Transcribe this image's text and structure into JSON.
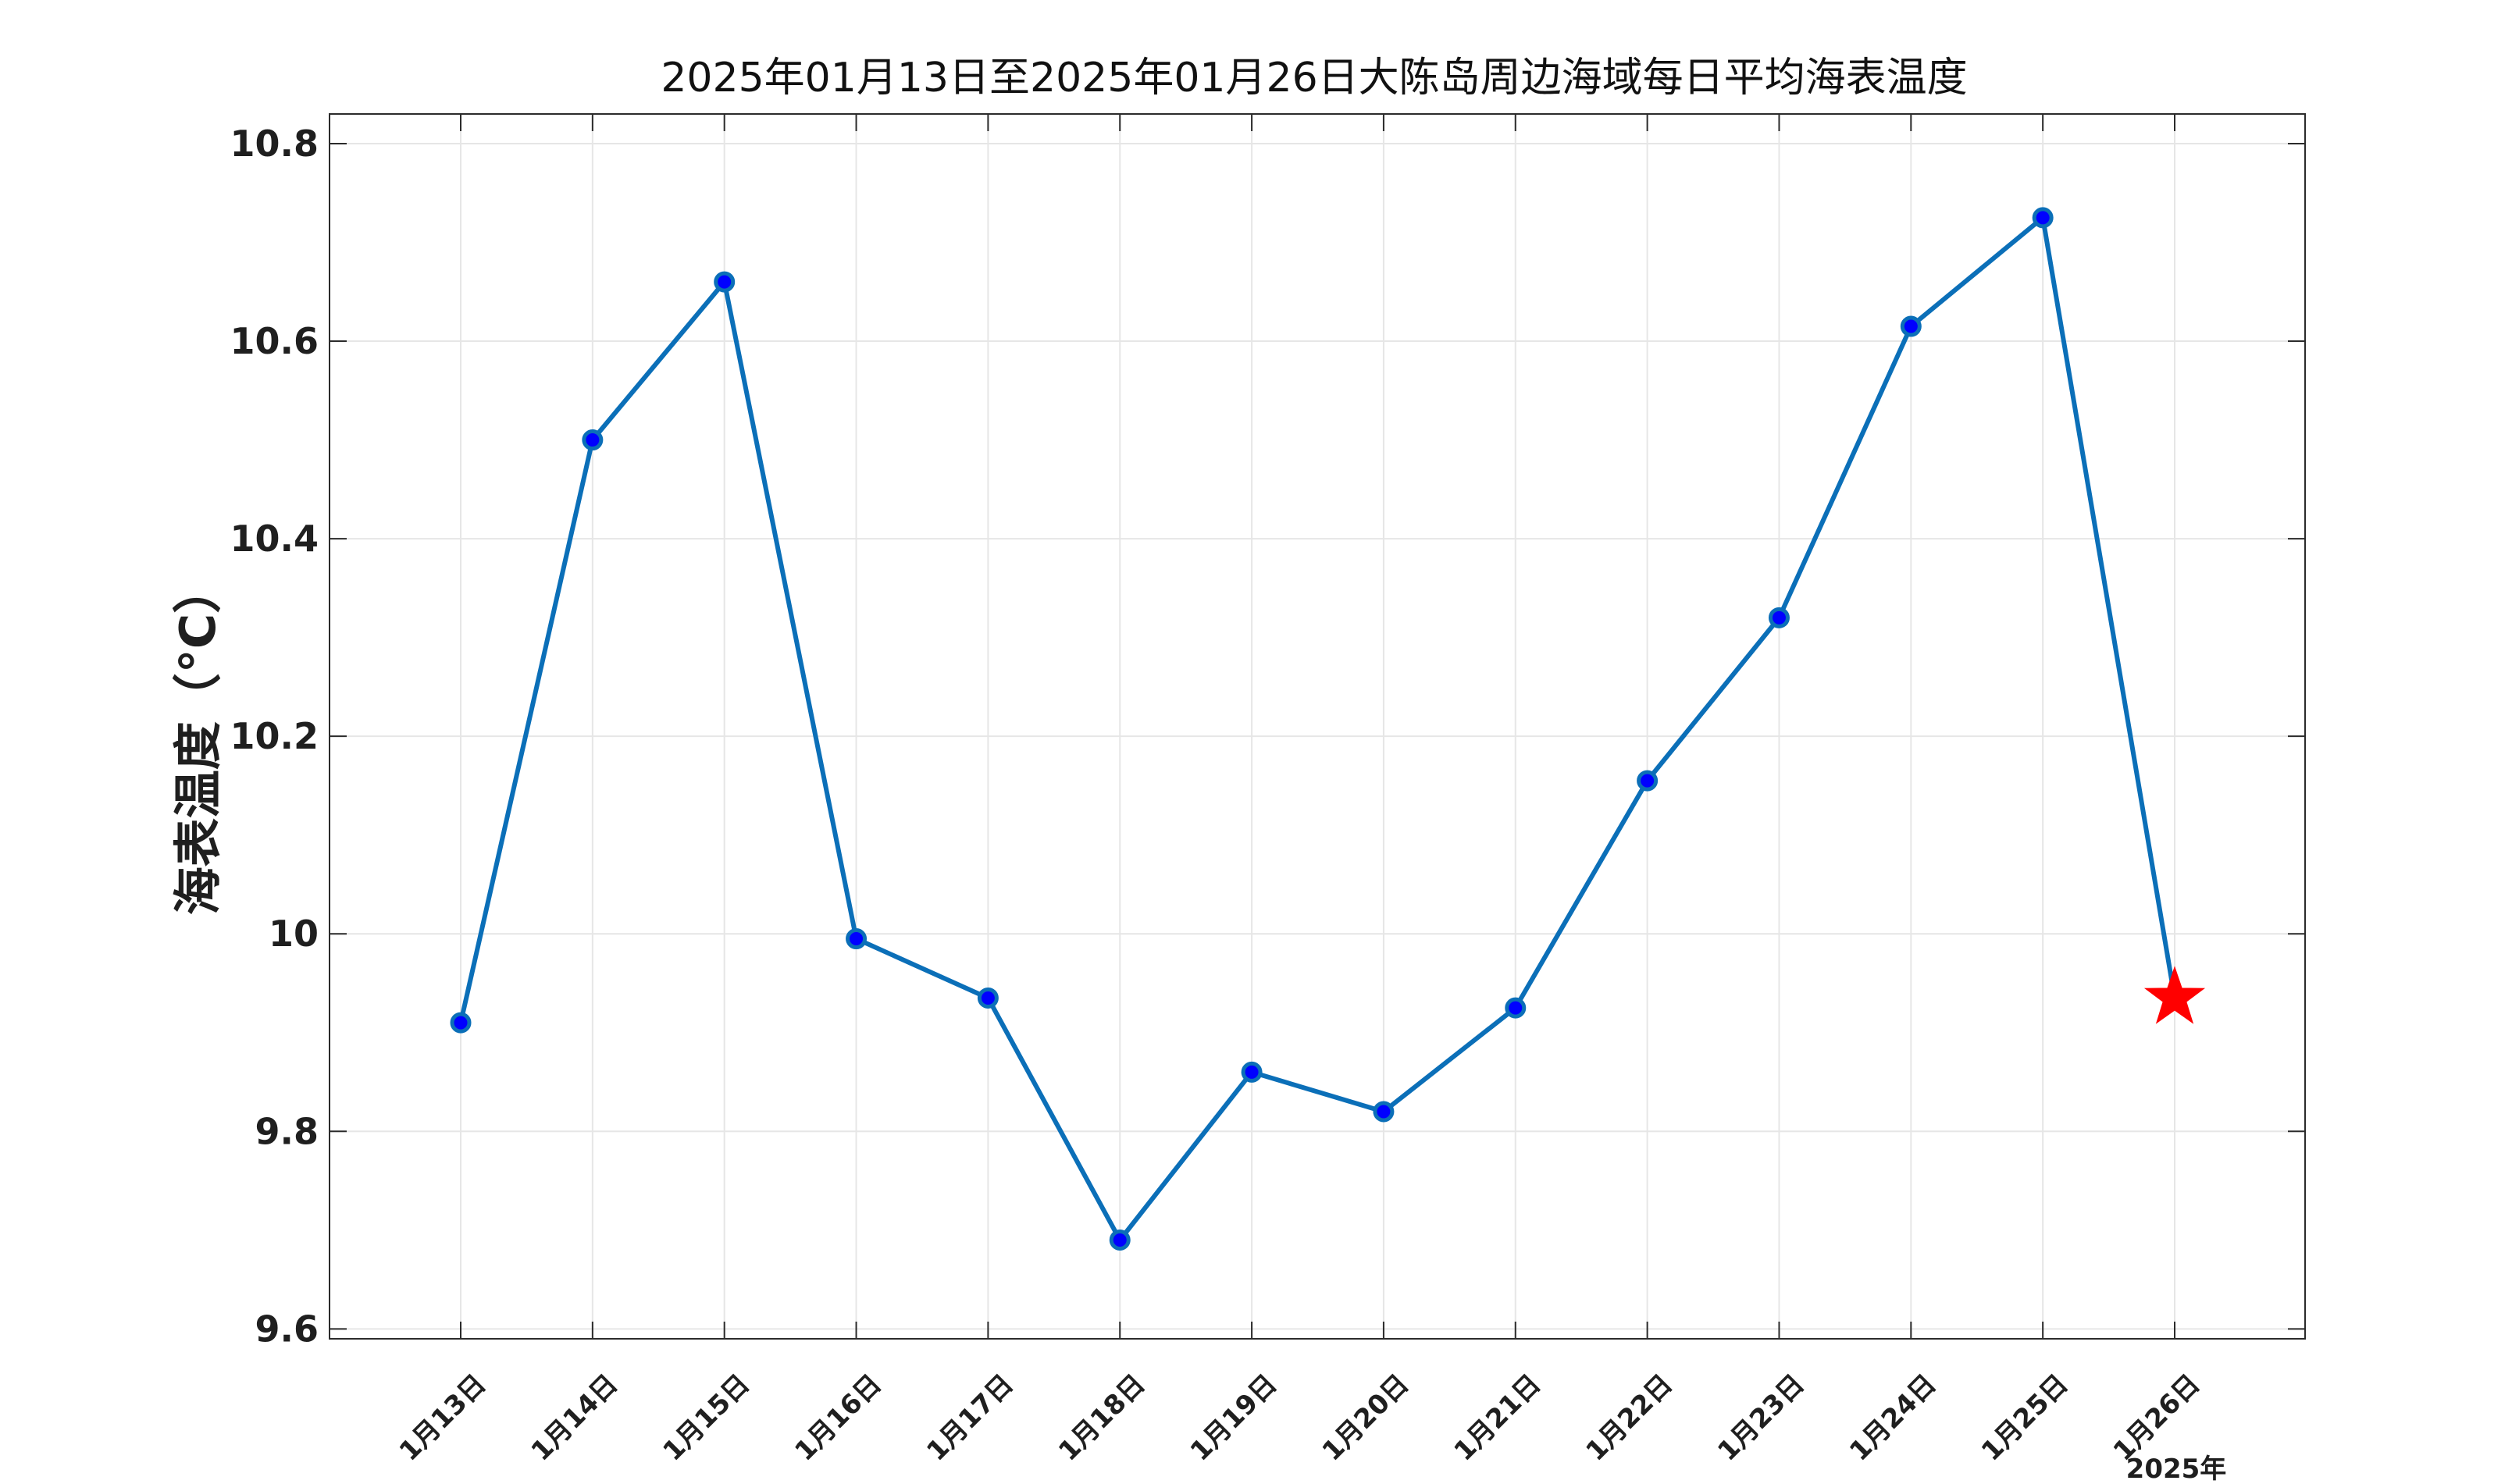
{
  "chart_data": {
    "type": "line",
    "title": "2025年01月13日至2025年01月26日大陈岛周边海域每日平均海表温度",
    "xlabel": "",
    "ylabel": "海表温度（°C）",
    "x_secondary_label": "2025年",
    "categories": [
      "1月13日",
      "1月14日",
      "1月15日",
      "1月16日",
      "1月17日",
      "1月18日",
      "1月19日",
      "1月20日",
      "1月21日",
      "1月22日",
      "1月23日",
      "1月24日",
      "1月25日",
      "1月26日"
    ],
    "series": [
      {
        "values": [
          9.91,
          10.5,
          10.66,
          9.995,
          9.935,
          9.69,
          9.86,
          9.82,
          9.925,
          10.155,
          10.32,
          10.615,
          10.725,
          9.935
        ],
        "color": "#0b6fb8",
        "marker_fill": "#0000ff",
        "highlight_last": true,
        "highlight_color": "#ff0000",
        "highlight_marker": "star"
      }
    ],
    "ylim": [
      9.59,
      10.83
    ],
    "yticks": [
      9.6,
      9.8,
      10,
      10.2,
      10.4,
      10.6,
      10.8
    ],
    "ytick_labels": [
      "9.6",
      "9.8",
      "10",
      "10.2",
      "10.4",
      "10.6",
      "10.8"
    ],
    "grid": true
  }
}
